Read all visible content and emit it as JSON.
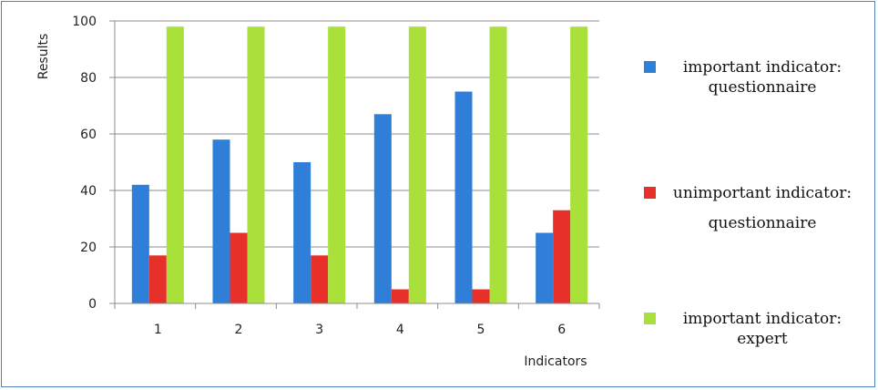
{
  "chart_data": {
    "type": "bar",
    "title": "",
    "xlabel": "Indicators",
    "ylabel": "Results",
    "ylim": [
      0,
      100
    ],
    "yticks": [
      0,
      20,
      40,
      60,
      80,
      100
    ],
    "grid": true,
    "legend_position": "right",
    "categories": [
      "1",
      "2",
      "3",
      "4",
      "5",
      "6"
    ],
    "series": [
      {
        "name": "important indicator: questionnaire",
        "legend_lines": [
          "important indicator:",
          "questionnaire"
        ],
        "color": "#2f7fd9",
        "values": [
          42,
          58,
          50,
          67,
          75,
          25
        ]
      },
      {
        "name": "unimportant indicator: questionnaire",
        "legend_lines": [
          "unimportant indicator:",
          "questionnaire"
        ],
        "color": "#e8302a",
        "values": [
          17,
          25,
          17,
          5,
          5,
          33
        ]
      },
      {
        "name": "important indicator: expert",
        "legend_lines": [
          "important indicator:",
          "expert"
        ],
        "color": "#a9e03a",
        "values": [
          98,
          98,
          98,
          98,
          98,
          98
        ]
      }
    ]
  }
}
